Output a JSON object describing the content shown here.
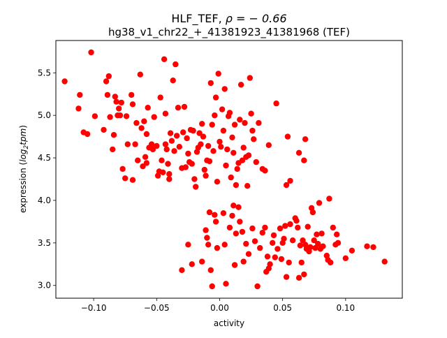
{
  "chart_data": {
    "type": "scatter",
    "title_line1_prefix": "HLF_TEF, ",
    "title_line1_rho": "ρ = − 0.66",
    "title_line2": "hg38_v1_chr22_+_41381923_41381968 (TEF)",
    "xlabel": "activity",
    "ylabel_prefix": "expression (",
    "ylabel_math": "log",
    "ylabel_sub": "2",
    "ylabel_math2": "tpm",
    "ylabel_suffix": ")",
    "xlim": [
      -0.13,
      0.145
    ],
    "ylim": [
      2.85,
      5.88
    ],
    "xticks": [
      -0.1,
      -0.05,
      0.0,
      0.05,
      0.1
    ],
    "xtick_labels": [
      "−0.10",
      "−0.05",
      "0.00",
      "0.05",
      "0.10"
    ],
    "yticks": [
      3.0,
      3.5,
      4.0,
      4.5,
      5.0,
      5.5
    ],
    "ytick_labels": [
      "3.0",
      "3.5",
      "4.0",
      "4.5",
      "5.0",
      "5.5"
    ],
    "marker_color": "#ff0000",
    "grid": false,
    "points": [
      [
        -0.123,
        5.4
      ],
      [
        -0.102,
        5.74
      ],
      [
        -0.111,
        5.24
      ],
      [
        -0.112,
        5.08
      ],
      [
        -0.108,
        4.8
      ],
      [
        -0.105,
        4.78
      ],
      [
        -0.099,
        4.99
      ],
      [
        -0.092,
        4.83
      ],
      [
        -0.09,
        5.4
      ],
      [
        -0.089,
        5.24
      ],
      [
        -0.088,
        5.46
      ],
      [
        -0.087,
        4.98
      ],
      [
        -0.085,
        4.6
      ],
      [
        -0.084,
        4.77
      ],
      [
        -0.083,
        5.22
      ],
      [
        -0.082,
        5.16
      ],
      [
        -0.081,
        5.0
      ],
      [
        -0.08,
        5.08
      ],
      [
        -0.079,
        5.0
      ],
      [
        -0.078,
        5.15
      ],
      [
        -0.077,
        4.37
      ],
      [
        -0.075,
        4.26
      ],
      [
        -0.074,
        4.99
      ],
      [
        -0.073,
        4.66
      ],
      [
        -0.07,
        5.24
      ],
      [
        -0.069,
        4.24
      ],
      [
        -0.069,
        5.13
      ],
      [
        -0.067,
        4.66
      ],
      [
        -0.066,
        4.91
      ],
      [
        -0.065,
        4.47
      ],
      [
        -0.063,
        5.48
      ],
      [
        -0.062,
        4.85
      ],
      [
        -0.061,
        4.4
      ],
      [
        -0.06,
        4.93
      ],
      [
        -0.059,
        4.51
      ],
      [
        -0.058,
        4.78
      ],
      [
        -0.058,
        4.44
      ],
      [
        -0.057,
        5.09
      ],
      [
        -0.056,
        4.62
      ],
      [
        -0.054,
        4.66
      ],
      [
        -0.053,
        4.6
      ],
      [
        -0.052,
        4.98
      ],
      [
        -0.05,
        4.64
      ],
      [
        -0.049,
        4.29
      ],
      [
        -0.048,
        4.34
      ],
      [
        -0.047,
        5.21
      ],
      [
        -0.046,
        4.47
      ],
      [
        -0.045,
        4.33
      ],
      [
        -0.044,
        5.66
      ],
      [
        -0.043,
        4.66
      ],
      [
        -0.043,
        5.02
      ],
      [
        -0.042,
        4.6
      ],
      [
        -0.041,
        4.43
      ],
      [
        -0.04,
        4.31
      ],
      [
        -0.04,
        4.25
      ],
      [
        -0.039,
        4.79
      ],
      [
        -0.038,
        4.7
      ],
      [
        -0.037,
        5.41
      ],
      [
        -0.036,
        4.58
      ],
      [
        -0.035,
        5.6
      ],
      [
        -0.034,
        4.76
      ],
      [
        -0.033,
        5.09
      ],
      [
        -0.032,
        4.63
      ],
      [
        -0.03,
        4.38
      ],
      [
        -0.029,
        4.8
      ],
      [
        -0.028,
        5.1
      ],
      [
        -0.027,
        4.39
      ],
      [
        -0.026,
        4.73
      ],
      [
        -0.025,
        4.55
      ],
      [
        -0.024,
        4.45
      ],
      [
        -0.023,
        4.83
      ],
      [
        -0.022,
        4.43
      ],
      [
        -0.021,
        4.82
      ],
      [
        -0.02,
        4.25
      ],
      [
        -0.019,
        4.16
      ],
      [
        -0.018,
        4.57
      ],
      [
        -0.017,
        4.62
      ],
      [
        -0.016,
        4.79
      ],
      [
        -0.015,
        4.66
      ],
      [
        -0.014,
        4.9
      ],
      [
        -0.013,
        4.75
      ],
      [
        -0.012,
        4.36
      ],
      [
        -0.011,
        4.29
      ],
      [
        -0.01,
        4.47
      ],
      [
        -0.009,
        4.64
      ],
      [
        -0.008,
        4.46
      ],
      [
        -0.007,
        5.38
      ],
      [
        -0.006,
        4.89
      ],
      [
        -0.005,
        4.58
      ],
      [
        -0.004,
        5.0
      ],
      [
        -0.003,
        5.21
      ],
      [
        -0.002,
        4.22
      ],
      [
        -0.001,
        5.49
      ],
      [
        0.0,
        4.69
      ],
      [
        0.001,
        4.63
      ],
      [
        0.002,
        5.07
      ],
      [
        0.003,
        4.82
      ],
      [
        0.004,
        5.31
      ],
      [
        0.005,
        4.41
      ],
      [
        0.006,
        4.6
      ],
      [
        0.007,
        4.99
      ],
      [
        0.008,
        5.03
      ],
      [
        0.009,
        4.27
      ],
      [
        0.01,
        4.74
      ],
      [
        0.011,
        4.56
      ],
      [
        0.012,
        4.89
      ],
      [
        0.013,
        4.18
      ],
      [
        0.014,
        4.37
      ],
      [
        0.015,
        4.44
      ],
      [
        0.016,
        4.95
      ],
      [
        0.017,
        5.36
      ],
      [
        0.018,
        4.47
      ],
      [
        0.019,
        4.62
      ],
      [
        0.02,
        4.91
      ],
      [
        0.021,
        4.51
      ],
      [
        0.022,
        4.17
      ],
      [
        0.023,
        4.53
      ],
      [
        0.024,
        5.44
      ],
      [
        0.025,
        5.02
      ],
      [
        0.026,
        4.82
      ],
      [
        0.027,
        4.72
      ],
      [
        0.029,
        4.45
      ],
      [
        0.031,
        4.91
      ],
      [
        0.034,
        4.37
      ],
      [
        0.036,
        4.35
      ],
      [
        0.039,
        4.65
      ],
      [
        0.045,
        5.14
      ],
      [
        0.053,
        4.18
      ],
      [
        0.054,
        4.75
      ],
      [
        0.056,
        4.23
      ],
      [
        0.063,
        4.56
      ],
      [
        0.067,
        4.47
      ],
      [
        0.068,
        4.72
      ],
      [
        -0.03,
        3.18
      ],
      [
        -0.025,
        3.48
      ],
      [
        -0.022,
        3.25
      ],
      [
        -0.014,
        3.28
      ],
      [
        -0.011,
        3.65
      ],
      [
        -0.01,
        3.56
      ],
      [
        -0.009,
        3.48
      ],
      [
        -0.008,
        3.86
      ],
      [
        -0.007,
        3.18
      ],
      [
        -0.006,
        2.99
      ],
      [
        -0.004,
        3.83
      ],
      [
        -0.003,
        3.75
      ],
      [
        -0.002,
        3.44
      ],
      [
        0.003,
        3.85
      ],
      [
        0.004,
        3.48
      ],
      [
        0.005,
        3.02
      ],
      [
        0.008,
        3.68
      ],
      [
        0.01,
        3.82
      ],
      [
        0.011,
        3.94
      ],
      [
        0.012,
        3.24
      ],
      [
        0.013,
        3.61
      ],
      [
        0.015,
        3.92
      ],
      [
        0.016,
        3.75
      ],
      [
        0.018,
        3.63
      ],
      [
        0.019,
        3.28
      ],
      [
        0.021,
        3.49
      ],
      [
        0.023,
        3.37
      ],
      [
        0.026,
        3.67
      ],
      [
        0.028,
        3.52
      ],
      [
        0.03,
        2.99
      ],
      [
        0.032,
        3.44
      ],
      [
        0.034,
        3.62
      ],
      [
        0.036,
        3.68
      ],
      [
        0.037,
        3.16
      ],
      [
        0.038,
        3.34
      ],
      [
        0.039,
        3.2
      ],
      [
        0.04,
        3.25
      ],
      [
        0.042,
        3.5
      ],
      [
        0.043,
        3.59
      ],
      [
        0.044,
        3.33
      ],
      [
        0.046,
        3.43
      ],
      [
        0.048,
        3.67
      ],
      [
        0.049,
        3.31
      ],
      [
        0.05,
        3.5
      ],
      [
        0.051,
        3.55
      ],
      [
        0.052,
        3.7
      ],
      [
        0.053,
        3.1
      ],
      [
        0.055,
        3.27
      ],
      [
        0.056,
        3.72
      ],
      [
        0.058,
        3.53
      ],
      [
        0.06,
        3.79
      ],
      [
        0.061,
        3.76
      ],
      [
        0.062,
        3.68
      ],
      [
        0.063,
        3.09
      ],
      [
        0.064,
        3.47
      ],
      [
        0.065,
        3.27
      ],
      [
        0.066,
        3.53
      ],
      [
        0.067,
        3.13
      ],
      [
        0.068,
        3.48
      ],
      [
        0.069,
        3.43
      ],
      [
        0.07,
        3.69
      ],
      [
        0.071,
        3.4
      ],
      [
        0.072,
        3.45
      ],
      [
        0.073,
        3.91
      ],
      [
        0.074,
        3.86
      ],
      [
        0.075,
        3.53
      ],
      [
        0.076,
        3.44
      ],
      [
        0.077,
        3.6
      ],
      [
        0.078,
        3.49
      ],
      [
        0.079,
        3.97
      ],
      [
        0.08,
        3.43
      ],
      [
        0.081,
        3.61
      ],
      [
        0.082,
        3.46
      ],
      [
        0.085,
        3.35
      ],
      [
        0.086,
        3.3
      ],
      [
        0.087,
        4.02
      ],
      [
        0.088,
        3.27
      ],
      [
        0.09,
        3.68
      ],
      [
        0.092,
        3.48
      ],
      [
        0.093,
        3.6
      ],
      [
        0.094,
        3.5
      ],
      [
        0.1,
        3.32
      ],
      [
        0.105,
        3.41
      ],
      [
        0.117,
        3.46
      ],
      [
        0.122,
        3.45
      ],
      [
        0.131,
        3.28
      ]
    ]
  }
}
